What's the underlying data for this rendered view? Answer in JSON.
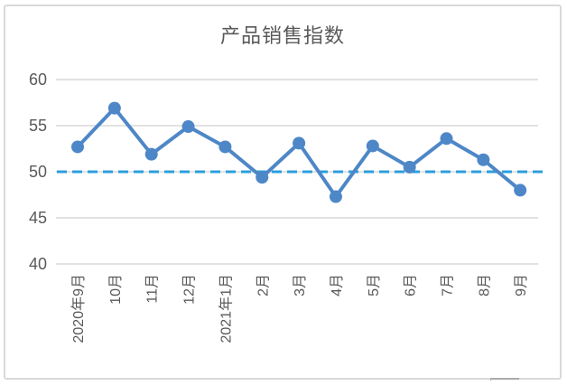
{
  "chart_data": {
    "type": "line",
    "title": "产品销售指数",
    "categories": [
      "2020年9月",
      "10月",
      "11月",
      "12月",
      "2021年1月",
      "2月",
      "3月",
      "4月",
      "5月",
      "6月",
      "7月",
      "8月",
      "9月"
    ],
    "series": [
      {
        "name": "产品销售指数",
        "values": [
          52.7,
          56.9,
          51.9,
          54.9,
          52.7,
          49.4,
          53.1,
          47.3,
          52.8,
          50.5,
          53.6,
          51.3,
          48.0
        ]
      }
    ],
    "reference_line": {
      "value": 50,
      "style": "dashed"
    },
    "xlabel": "",
    "ylabel": "",
    "ylim": [
      40,
      60
    ],
    "yticks": [
      40,
      45,
      50,
      55,
      60
    ],
    "grid": "horizontal",
    "legend": "none",
    "x_tick_rotation": 90
  },
  "colors": {
    "series_line": "#4e87c7",
    "marker_fill": "#4e87c7",
    "reference_line": "#2b9fdd",
    "gridline": "#d9d9d9",
    "axis_text": "#595959",
    "title_text": "#595959",
    "frame_border": "#d9d9d9"
  }
}
